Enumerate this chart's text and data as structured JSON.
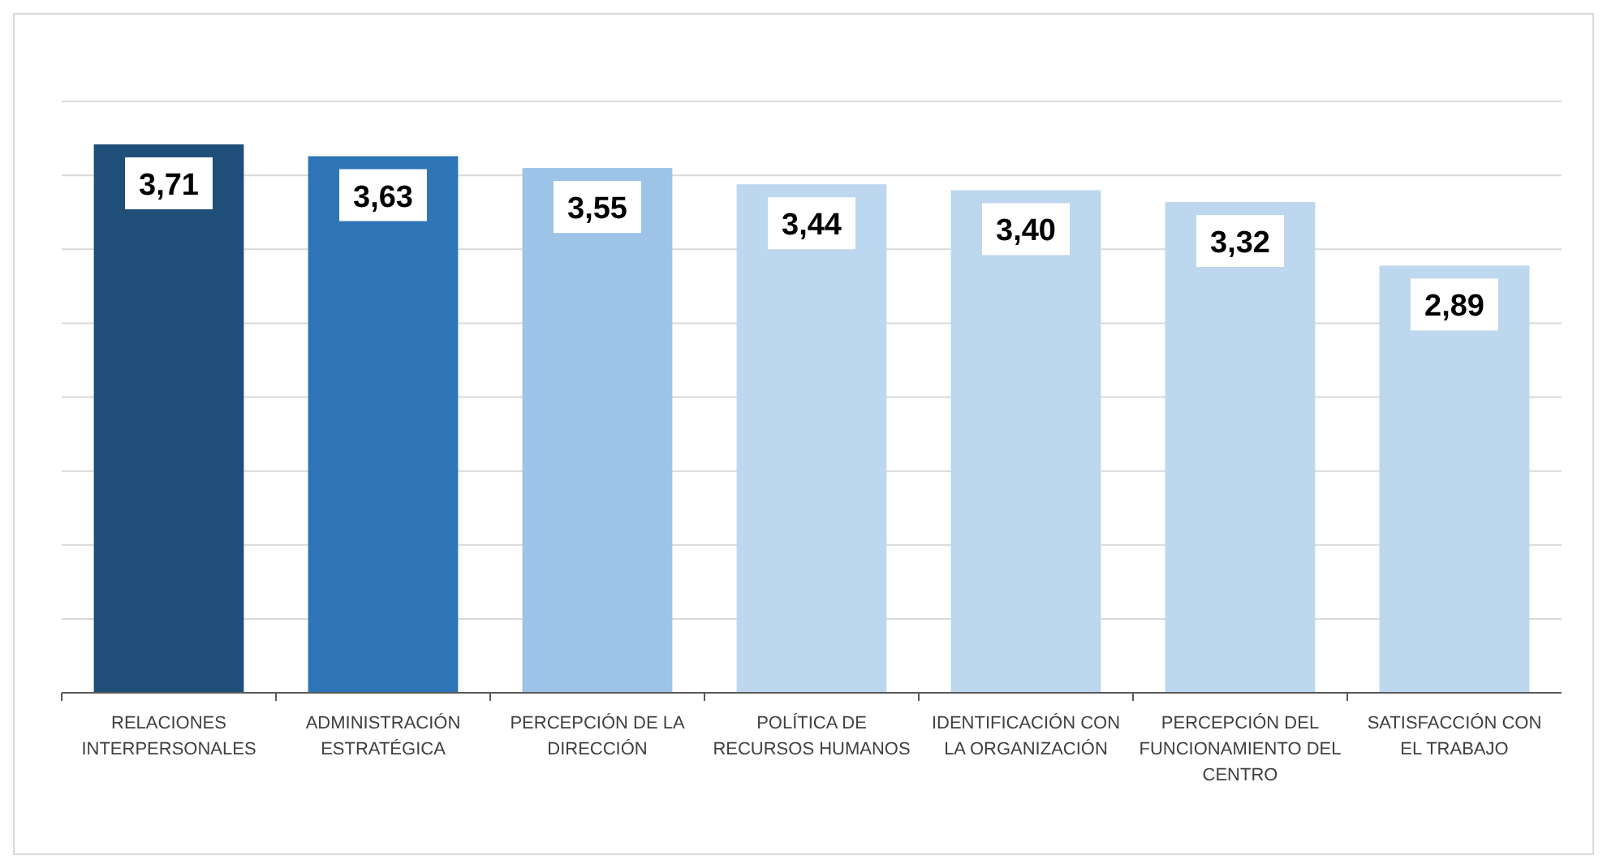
{
  "chart_data": {
    "type": "bar",
    "categories": [
      "RELACIONES INTERPERSONALES",
      "ADMINISTRACIÓN ESTRATÉGICA",
      "PERCEPCIÓN DE LA DIRECCIÓN",
      "POLÍTICA DE RECURSOS HUMANOS",
      "IDENTIFICACIÓN CON LA ORGANIZACIÓN",
      "PERCEPCIÓN DEL FUNCIONAMIENTO DEL CENTRO",
      "SATISFACCIÓN CON EL TRABAJO"
    ],
    "values": [
      3.71,
      3.63,
      3.55,
      3.44,
      3.4,
      3.32,
      2.89
    ],
    "colors": [
      "#1f4e79",
      "#2e75b6",
      "#9dc3e6",
      "#bdd7ee",
      "#bdd7ee",
      "#bdd7ee",
      "#bdd7ee"
    ],
    "value_labels": [
      "3,71",
      "3,63",
      "3,55",
      "3,44",
      "3,40",
      "3,32",
      "2,89"
    ],
    "grid": "y",
    "tick_labels": "x"
  }
}
